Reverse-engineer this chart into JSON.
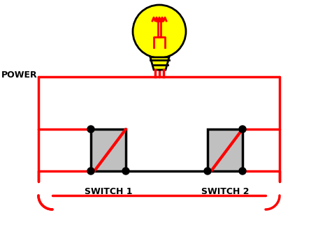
{
  "background_color": "#ffffff",
  "wire_color_red": "#ff0000",
  "wire_color_black": "#000000",
  "switch_fill": "#c0c0c0",
  "switch_border": "#000000",
  "bulb_fill": "#ffff00",
  "bulb_filament_color": "#ff0000",
  "bulb_base_fill": "#ffff00",
  "dot_color": "#000000",
  "power_label": "POWER",
  "switch1_label": "SWITCH 1",
  "switch2_label": "SWITCH 2",
  "label_fontsize": 9,
  "wire_linewidth": 2.5,
  "switch_linewidth": 2.5
}
